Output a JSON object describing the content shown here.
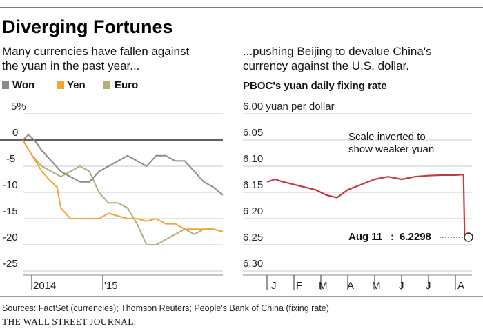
{
  "title": "Diverging Fortunes",
  "footer": {
    "sources": "Sources: FactSet (currencies); Thomson Reuters; People's Bank of China (fixing rate)",
    "publisher": "THE WALL STREET JOURNAL."
  },
  "colors": {
    "won": "#8a8a8a",
    "yen": "#f5a433",
    "euro": "#b5ad79",
    "fixing": "#c8373a"
  },
  "left_chart": {
    "subtitle_line1": "Many currencies have fallen against",
    "subtitle_line2": "the yuan in the past year...",
    "y_tick_labels": [
      "5%",
      "0",
      "-5",
      "-10",
      "-15",
      "-20",
      "-25"
    ],
    "x_tick_labels": [
      "2014",
      "'15"
    ],
    "legend": [
      "Won",
      "Yen",
      "Euro"
    ]
  },
  "right_chart": {
    "subtitle_line1": "...pushing Beijing to devalue China's",
    "subtitle_line2": "currency against the U.S. dollar.",
    "chart_title": "PBOC's yuan daily fixing rate",
    "y_tick_labels": [
      "6.00 yuan per dollar",
      "6.05",
      "6.10",
      "6.15",
      "6.20",
      "6.25",
      "6.30"
    ],
    "x_tick_labels": [
      "J",
      "F",
      "M",
      "A",
      "M",
      "J",
      "J",
      "A"
    ],
    "note_line1": "Scale inverted to",
    "note_line2": "show weaker yuan",
    "callout_date": "Aug 11",
    "callout_sep": ":",
    "callout_value": "6.2298"
  },
  "chart_data": [
    {
      "type": "line",
      "title": "Many currencies have fallen against the yuan in the past year...",
      "ylabel": "%",
      "ylim": [
        -25,
        5
      ],
      "x_ticks": [
        "2014",
        "'15"
      ],
      "x_range_months": [
        "Nov 2013",
        "Aug 2015"
      ],
      "gridlines": true,
      "series": [
        {
          "name": "Won",
          "x_month_offset": [
            0,
            0.6,
            1.2,
            2,
            3,
            4,
            5,
            6,
            7,
            8,
            9,
            10,
            11,
            12,
            13,
            14,
            15,
            16,
            17,
            18,
            19,
            20,
            21
          ],
          "values": [
            0,
            1,
            0,
            -2,
            -4,
            -6,
            -7,
            -8,
            -8,
            -6,
            -5,
            -4,
            -3,
            -4,
            -5,
            -3,
            -3,
            -4,
            -4,
            -6,
            -8,
            -9,
            -10.5
          ]
        },
        {
          "name": "Yen",
          "x_month_offset": [
            0,
            1,
            2,
            3,
            3.6,
            4,
            5,
            6,
            7,
            8,
            9,
            10,
            11,
            12,
            13,
            14,
            15,
            16,
            17,
            18,
            19,
            20,
            21
          ],
          "values": [
            0,
            -3,
            -6,
            -8,
            -9,
            -13,
            -15,
            -15,
            -15,
            -15,
            -14,
            -14.5,
            -15,
            -15,
            -15.5,
            -15,
            -16,
            -16,
            -17,
            -17,
            -17,
            -17,
            -17.5
          ]
        },
        {
          "name": "Euro",
          "x_month_offset": [
            0,
            1,
            2,
            3,
            4,
            5,
            6,
            7,
            8,
            9,
            10,
            11,
            12,
            13,
            14,
            15,
            16,
            17,
            18,
            19,
            20,
            21
          ],
          "values": [
            0,
            -3,
            -5,
            -6,
            -7,
            -6,
            -5,
            -6,
            -10,
            -12,
            -12,
            -13,
            -16,
            -20,
            -20,
            -19,
            -18,
            -17,
            -18,
            -17,
            -17,
            -17.5
          ]
        }
      ]
    },
    {
      "type": "line",
      "title": "PBOC's yuan daily fixing rate",
      "ylabel": "yuan per dollar",
      "ylim": [
        6.3,
        6.0
      ],
      "y_scale": "inverted",
      "x_ticks": [
        "J",
        "F",
        "M",
        "A",
        "M",
        "J",
        "J",
        "A"
      ],
      "annotation": "Scale inverted to show weaker yuan",
      "series": [
        {
          "name": "PBOC's yuan daily fixing rate",
          "x_month_offset": [
            0,
            0.3,
            0.6,
            1,
            1.4,
            1.8,
            2.2,
            2.6,
            3,
            3.5,
            4,
            4.5,
            5,
            5.5,
            6,
            6.5,
            7,
            7.3,
            7.34
          ],
          "values": [
            6.13,
            6.125,
            6.13,
            6.135,
            6.14,
            6.145,
            6.155,
            6.16,
            6.145,
            6.135,
            6.125,
            6.12,
            6.125,
            6.12,
            6.118,
            6.117,
            6.117,
            6.116,
            6.2298
          ]
        }
      ]
    }
  ]
}
